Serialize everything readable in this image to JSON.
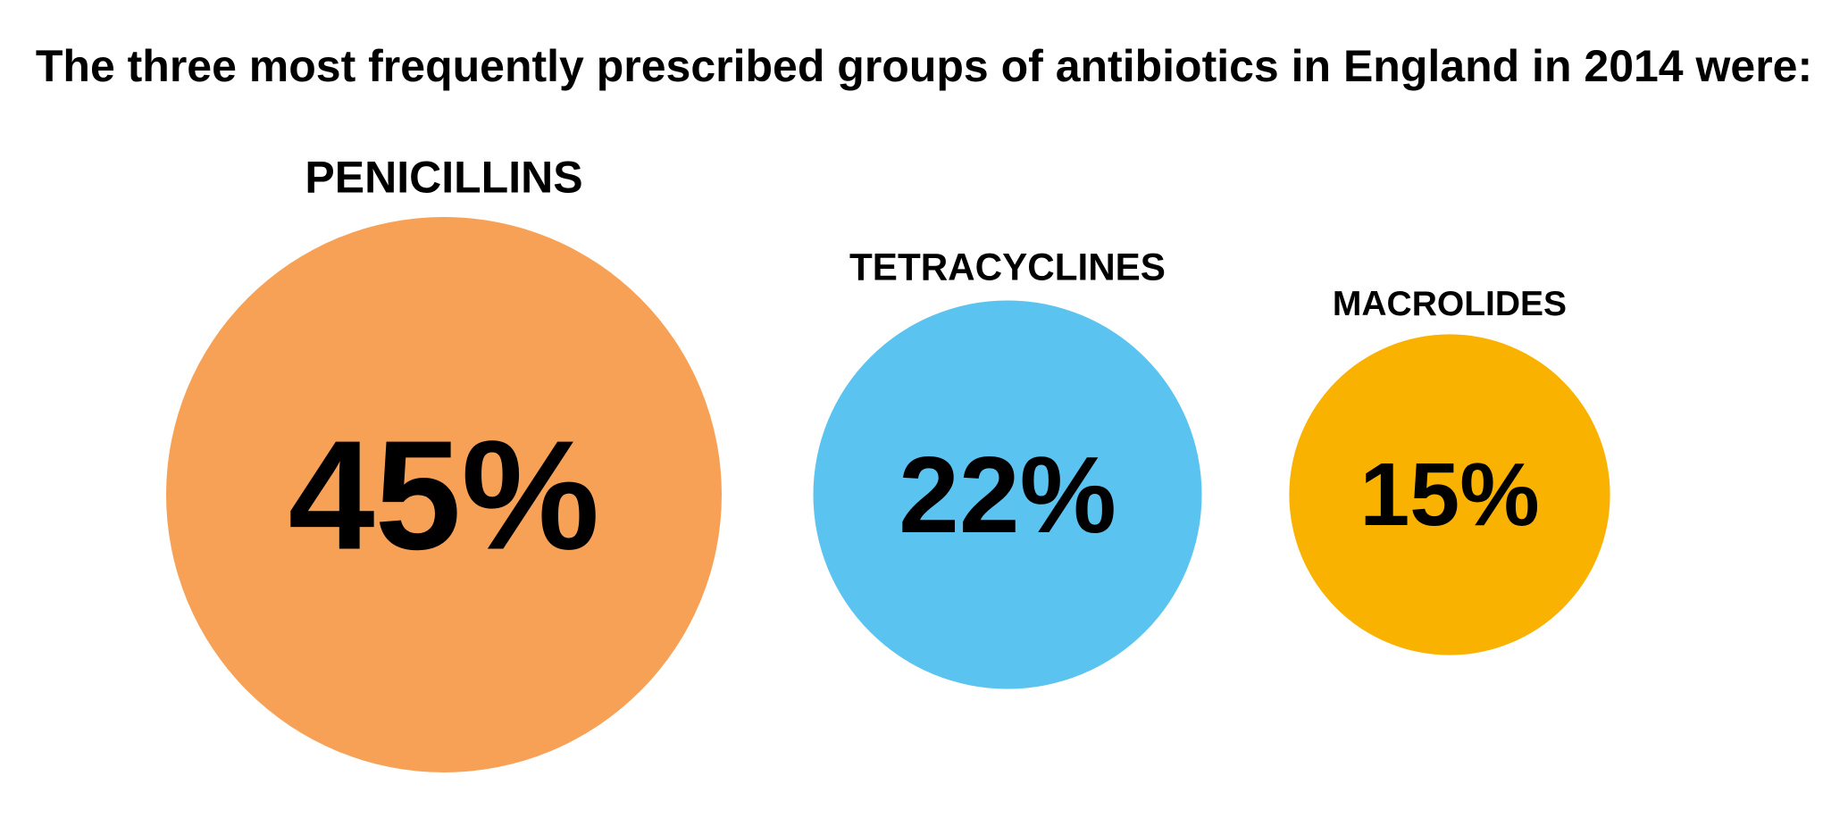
{
  "title": "The three most frequently prescribed groups of antibiotics in England in 2014 were:",
  "chart_data": {
    "type": "bubble",
    "title": "The three most frequently prescribed groups of antibiotics in England in 2014 were:",
    "categories": [
      "PENICILLINS",
      "TETRACYCLINES",
      "MACROLIDES"
    ],
    "values": [
      45,
      22,
      15
    ],
    "value_labels": [
      "45%",
      "22%",
      "15%"
    ],
    "unit": "%",
    "colors": [
      "#F7A157",
      "#5BC3F0",
      "#F9B200"
    ],
    "legend": "none",
    "grid": false
  }
}
